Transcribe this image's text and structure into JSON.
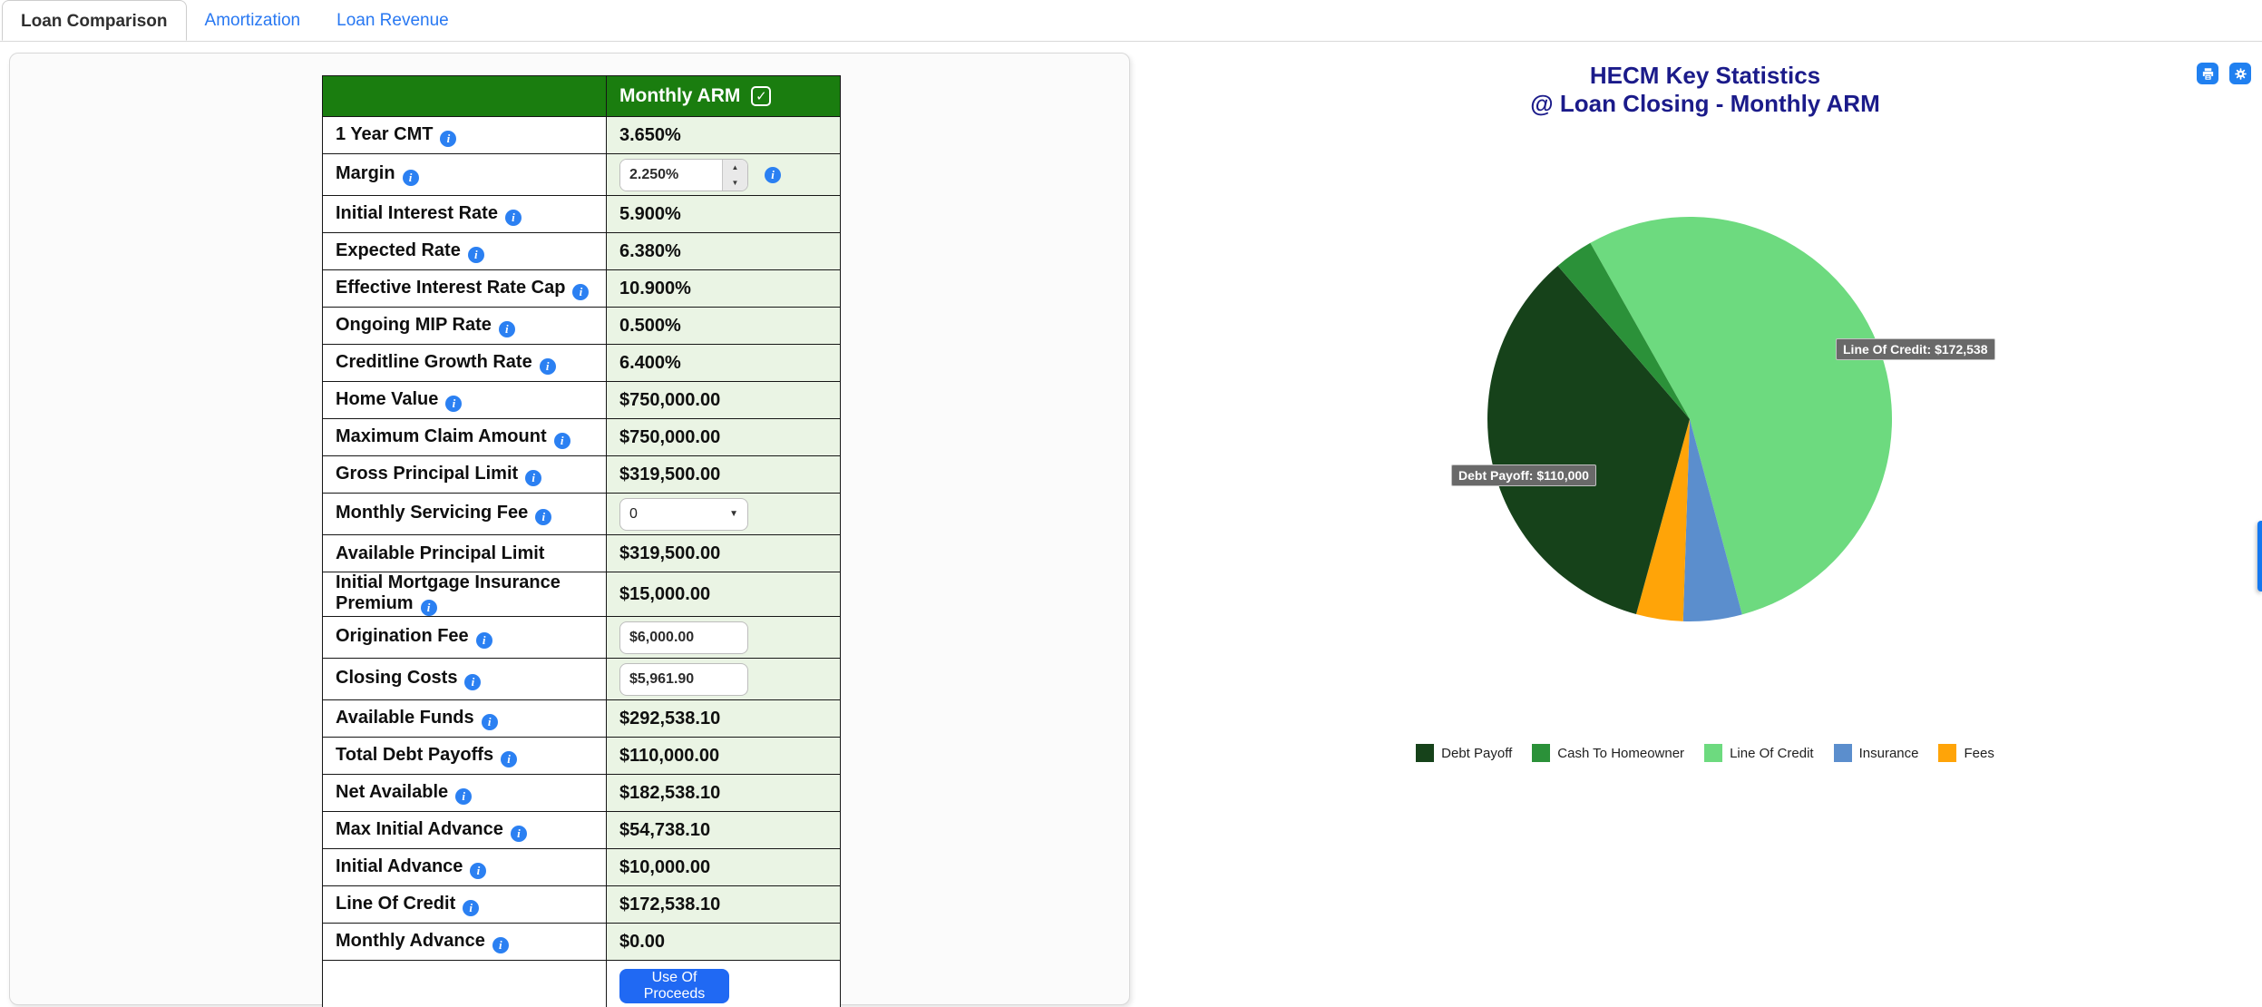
{
  "tabs": [
    {
      "label": "Loan Comparison",
      "active": true
    },
    {
      "label": "Amortization",
      "active": false
    },
    {
      "label": "Loan Revenue",
      "active": false
    }
  ],
  "table": {
    "header": {
      "title": "Monthly ARM",
      "checkbox_checked": true
    },
    "rows": [
      {
        "label": "1 Year CMT",
        "info": true,
        "type": "text",
        "value": "3.650%"
      },
      {
        "label": "Margin",
        "info": true,
        "type": "spinner",
        "value": "2.250%",
        "value_info": true
      },
      {
        "label": "Initial Interest Rate",
        "info": true,
        "type": "text",
        "value": "5.900%"
      },
      {
        "label": "Expected Rate",
        "info": true,
        "type": "text",
        "value": "6.380%"
      },
      {
        "label": "Effective Interest Rate Cap",
        "info": true,
        "type": "text",
        "value": "10.900%"
      },
      {
        "label": "Ongoing MIP Rate",
        "info": true,
        "type": "text",
        "value": "0.500%"
      },
      {
        "label": "Creditline Growth Rate",
        "info": true,
        "type": "text",
        "value": "6.400%"
      },
      {
        "label": "Home Value",
        "info": true,
        "type": "text",
        "value": "$750,000.00"
      },
      {
        "label": "Maximum Claim Amount",
        "info": true,
        "type": "text",
        "value": "$750,000.00"
      },
      {
        "label": "Gross Principal Limit",
        "info": true,
        "type": "text",
        "value": "$319,500.00"
      },
      {
        "label": "Monthly Servicing Fee",
        "info": true,
        "type": "select",
        "value": "0"
      },
      {
        "label": "Available Principal Limit",
        "info": false,
        "type": "text",
        "value": "$319,500.00"
      },
      {
        "label": "Initial Mortgage Insurance Premium",
        "info": true,
        "type": "text",
        "value": "$15,000.00"
      },
      {
        "label": "Origination Fee",
        "info": true,
        "type": "input",
        "value": "$6,000.00"
      },
      {
        "label": "Closing Costs",
        "info": true,
        "type": "input",
        "value": "$5,961.90"
      },
      {
        "label": "Available Funds",
        "info": true,
        "type": "text",
        "value": "$292,538.10"
      },
      {
        "label": "Total Debt Payoffs",
        "info": true,
        "type": "text",
        "value": "$110,000.00"
      },
      {
        "label": "Net Available",
        "info": true,
        "type": "text",
        "value": "$182,538.10"
      },
      {
        "label": "Max Initial Advance",
        "info": true,
        "type": "text",
        "value": "$54,738.10"
      },
      {
        "label": "Initial Advance",
        "info": true,
        "type": "text",
        "value": "$10,000.00"
      },
      {
        "label": "Line Of Credit",
        "info": true,
        "type": "text",
        "value": "$172,538.10"
      },
      {
        "label": "Monthly Advance",
        "info": true,
        "type": "text",
        "value": "$0.00"
      },
      {
        "label": "",
        "info": false,
        "type": "button",
        "value": "Use Of Proceeds"
      }
    ]
  },
  "chart": {
    "title_line1": "HECM Key Statistics",
    "title_line2": "@ Loan Closing - Monthly ARM"
  },
  "chart_data": {
    "type": "pie",
    "title": "HECM Key Statistics @ Loan Closing - Monthly ARM",
    "slices": [
      {
        "label": "Debt Payoff",
        "value": 110000,
        "color": "#16421a"
      },
      {
        "label": "Cash To Homeowner",
        "value": 10000,
        "color": "#2b9139"
      },
      {
        "label": "Line Of Credit",
        "value": 172538.1,
        "color": "#6dda7f"
      },
      {
        "label": "Insurance",
        "value": 15000,
        "color": "#5b8ecd"
      },
      {
        "label": "Fees",
        "value": 11961.9,
        "color": "#ffa408"
      }
    ],
    "total": 319500,
    "rotation_deg": -29.44,
    "draw_order": [
      2,
      3,
      4,
      0,
      1
    ],
    "legend_position": "bottom",
    "labels_shown": [
      {
        "slice": "Debt Payoff",
        "text": "Debt Payoff: $110,000"
      },
      {
        "slice": "Line Of Credit",
        "text": "Line Of Credit: $172,538"
      }
    ]
  },
  "colors": {
    "accent_blue": "#2878f2",
    "button_blue": "#2069f3",
    "icon_button_blue": "#2080f0",
    "header_green": "#1a7d0f",
    "value_cell_green": "#eaf4e4",
    "title_navy": "#1b1b8a"
  }
}
